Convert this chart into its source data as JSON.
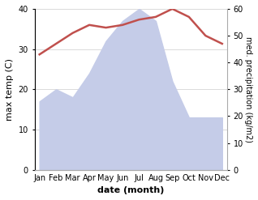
{
  "months": [
    "Jan",
    "Feb",
    "Mar",
    "Apr",
    "May",
    "Jun",
    "Jul",
    "Aug",
    "Sep",
    "Oct",
    "Nov",
    "Dec"
  ],
  "temperature": [
    43,
    47,
    51,
    54,
    53,
    54,
    56,
    57,
    60,
    57,
    50,
    47
  ],
  "precipitation": [
    17,
    20,
    18,
    24,
    32,
    37,
    40,
    37,
    22,
    13,
    13,
    13
  ],
  "temp_color": "#c0504d",
  "precip_fill_color": "#c5cce8",
  "xlabel": "date (month)",
  "ylabel_left": "max temp (C)",
  "ylabel_right": "med. precipitation (kg/m2)",
  "ylim_left": [
    0,
    40
  ],
  "ylim_right": [
    0,
    60
  ],
  "yticks_left": [
    0,
    10,
    20,
    30,
    40
  ],
  "yticks_right": [
    0,
    10,
    20,
    30,
    40,
    50,
    60
  ],
  "background_color": "#ffffff",
  "grid_color": "#cccccc"
}
